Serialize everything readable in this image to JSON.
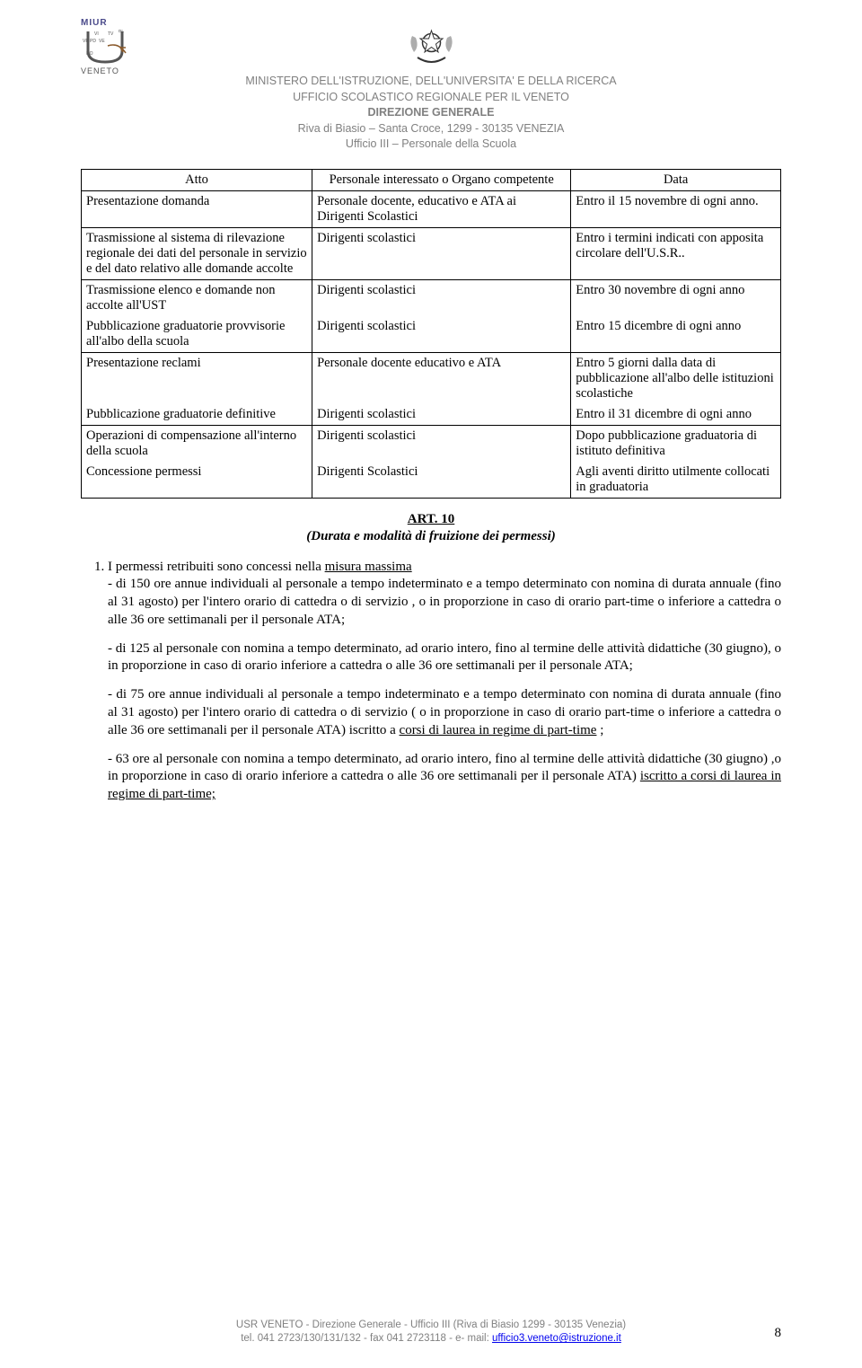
{
  "header": {
    "left_logo": {
      "line1": "MIUR",
      "line2": "VENETO",
      "provinces": [
        "BL",
        "VI",
        "TV",
        "VR",
        "PD",
        "VE",
        "RO"
      ]
    },
    "lines": [
      "MINISTERO DELL'ISTRUZIONE, DELL'UNIVERSITA' E DELLA RICERCA",
      "UFFICIO SCOLASTICO REGIONALE PER IL VENETO",
      "DIREZIONE GENERALE",
      "Riva di Biasio – Santa Croce, 1299 - 30135  VENEZIA",
      "Ufficio III – Personale della Scuola"
    ],
    "bold_indices": [
      2
    ],
    "text_color": "#808080",
    "fontsize": 12.5
  },
  "table": {
    "type": "table",
    "border_color": "#000000",
    "fontsize": 14.5,
    "font_family": "Times New Roman",
    "col_widths_pct": [
      33,
      37,
      30
    ],
    "header": [
      "Atto",
      "Personale interessato o Organo competente",
      "Data"
    ],
    "rows": [
      [
        "Presentazione domanda",
        "Personale docente, educativo e ATA ai Dirigenti Scolastici",
        "Entro il 15 novembre di ogni anno."
      ],
      [
        "Trasmissione al sistema di rilevazione regionale dei dati del personale in servizio e del dato relativo alle domande accolte",
        "Dirigenti scolastici",
        "Entro i termini indicati con apposita circolare dell'U.S.R.."
      ],
      [
        "Trasmissione elenco e domande non accolte all'UST",
        "Dirigenti scolastici",
        "Entro 30 novembre di ogni anno"
      ],
      [
        "Pubblicazione graduatorie provvisorie all'albo della scuola",
        "Dirigenti scolastici",
        "Entro 15 dicembre di ogni anno"
      ],
      [
        "Presentazione reclami",
        "Personale docente educativo e ATA",
        "Entro 5 giorni dalla data di pubblicazione all'albo delle istituzioni scolastiche"
      ],
      [
        "Pubblicazione graduatorie definitive",
        "Dirigenti scolastici",
        "Entro il 31 dicembre di ogni anno"
      ],
      [
        "Operazioni di compensazione all'interno della scuola",
        "Dirigenti scolastici",
        "Dopo pubblicazione graduatoria di istituto definitiva"
      ],
      [
        "Concessione permessi",
        "Dirigenti Scolastici",
        "Agli aventi diritto utilmente collocati in graduatoria"
      ]
    ],
    "row_groups": [
      [
        0,
        0
      ],
      [
        1,
        1
      ],
      [
        2,
        3
      ],
      [
        4,
        5
      ],
      [
        6,
        7
      ]
    ]
  },
  "article": {
    "number": "ART. 10",
    "title": "(Durata e modalità di fruizione dei permessi)"
  },
  "body": {
    "item1_lead": "I permessi retribuiti sono concessi  nella ",
    "item1_lead_u": "misura massima",
    "p1": "- di 150 ore annue individuali al personale a tempo indeterminato e a tempo determinato con nomina di durata annuale (fino al 31 agosto) per l'intero orario di cattedra o di servizio , o in proporzione in caso di orario part-time o inferiore a cattedra o alle 36 ore settimanali per il personale ATA;",
    "p2": "- di 125 al personale con nomina a tempo determinato, ad orario intero, fino al termine delle attività didattiche (30 giugno), o in proporzione in caso di orario inferiore a cattedra o alle 36 ore settimanali per il personale ATA;",
    "p3a": "- di 75 ore annue individuali al personale a tempo indeterminato e a tempo determinato con nomina di durata annuale (fino al 31 agosto) per l'intero orario di cattedra o di servizio ( o in proporzione in caso di orario part-time o inferiore a cattedra o alle 36 ore settimanali per il personale ATA) iscritto a ",
    "p3u": "corsi di laurea in regime di part-time",
    "p3b": " ;",
    "p4a": "- 63 ore al personale con nomina a tempo determinato, ad orario intero, fino al termine delle attività didattiche (30 giugno) ,o in proporzione in caso di orario inferiore a cattedra o alle 36 ore settimanali per il personale ATA) ",
    "p4u": "iscritto a corsi di laurea in regime di part-time;"
  },
  "footer": {
    "line1": "USR VENETO -  Direzione Generale - Ufficio III (Riva di Biasio  1299 - 30135  Venezia)",
    "line2_pre": "tel. 041 2723/130/131/132 - fax 041 2723118  -  e- mail: ",
    "email": "ufficio3.veneto@istruzione.it",
    "page_number": "8",
    "text_color": "#808080",
    "link_color": "#0000ee"
  }
}
